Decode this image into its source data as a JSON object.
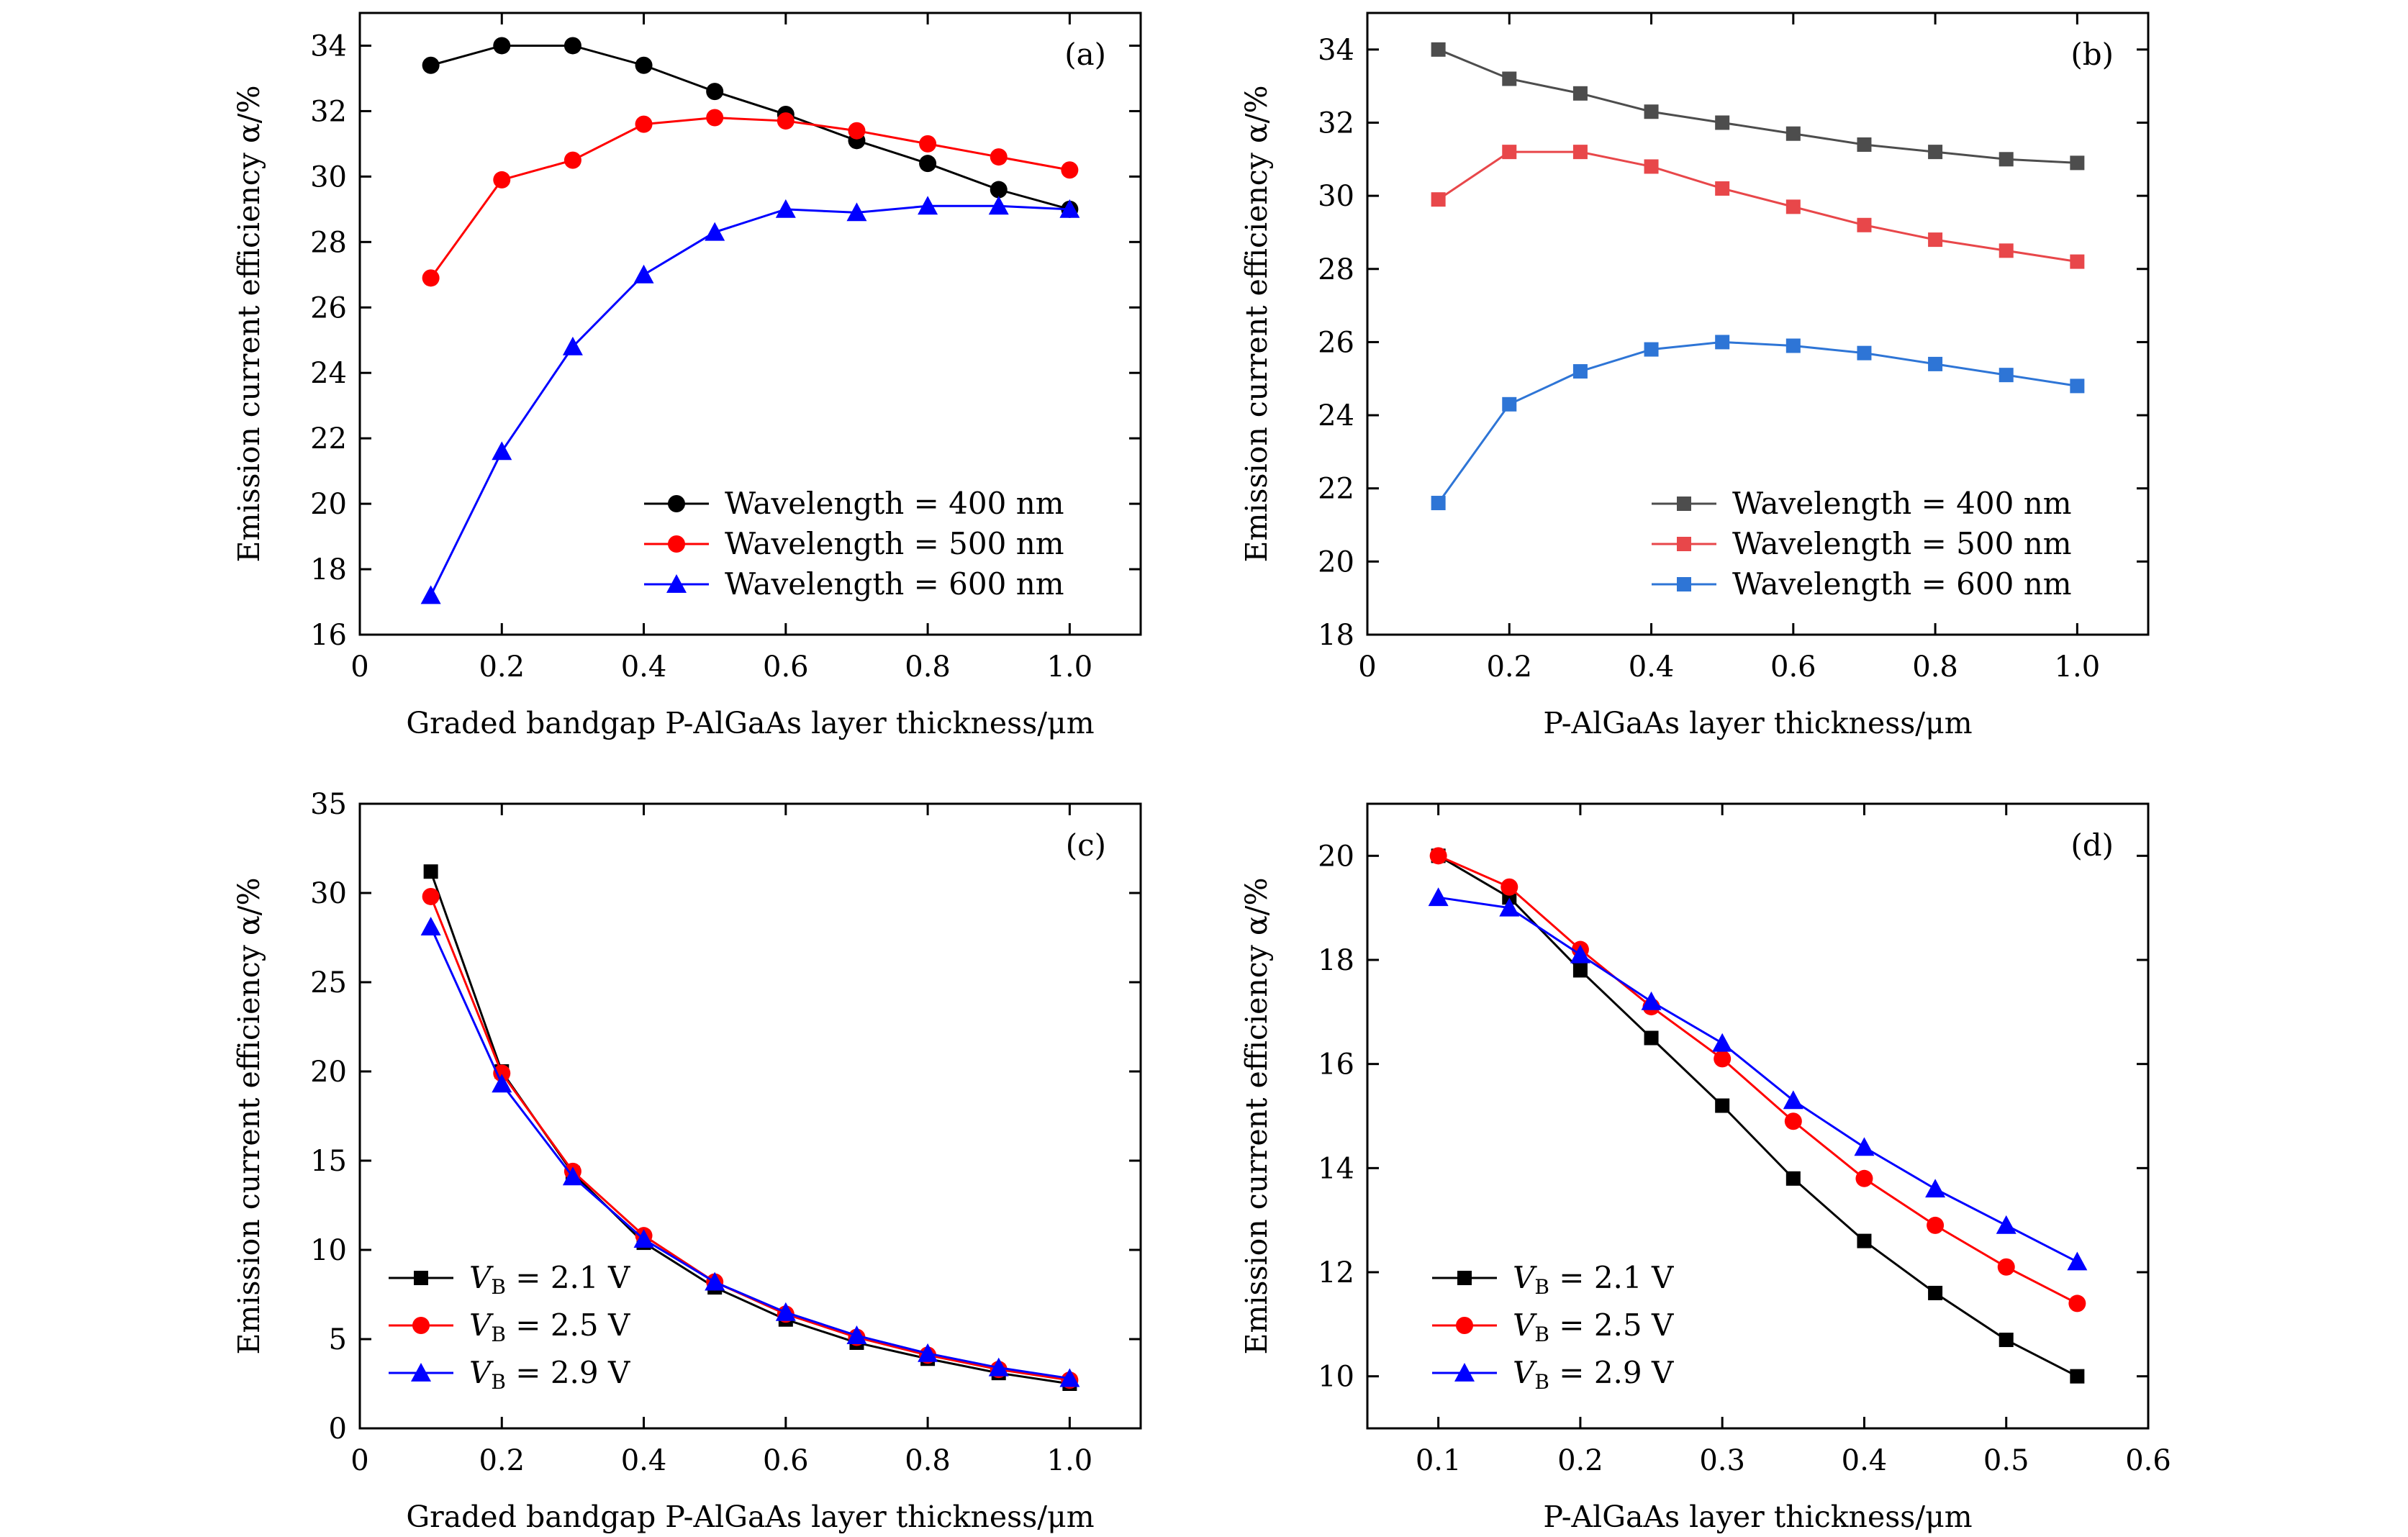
{
  "chart_data": [
    {
      "type": "line",
      "panel_label": "(a)",
      "xlabel": "Graded bandgap P-AlGaAs layer thickness/μm",
      "ylabel": "Emission current efficiency α/%",
      "xlim": [
        0,
        1.1
      ],
      "ylim": [
        16,
        35
      ],
      "xticks": [
        0,
        0.2,
        0.4,
        0.6,
        0.8,
        1.0
      ],
      "xtick_labels": [
        "0",
        "0.2",
        "0.4",
        "0.6",
        "0.8",
        "1.0"
      ],
      "yticks": [
        16,
        18,
        20,
        22,
        24,
        26,
        28,
        30,
        32,
        34
      ],
      "ytick_labels": [
        "16",
        "18",
        "20",
        "22",
        "24",
        "26",
        "28",
        "30",
        "32",
        "34"
      ],
      "legend_position": "bottom-right",
      "x": [
        0.1,
        0.2,
        0.3,
        0.4,
        0.5,
        0.6,
        0.7,
        0.8,
        0.9,
        1.0
      ],
      "series": [
        {
          "name": "Wavelength = 400 nm",
          "color": "#000000",
          "marker": "circle",
          "values": [
            33.4,
            34.0,
            34.0,
            33.4,
            32.6,
            31.9,
            31.1,
            30.4,
            29.6,
            29.0
          ]
        },
        {
          "name": "Wavelength = 500 nm",
          "color": "#ff0000",
          "marker": "circle",
          "values": [
            26.9,
            29.9,
            30.5,
            31.6,
            31.8,
            31.7,
            31.4,
            31.0,
            30.6,
            30.2
          ]
        },
        {
          "name": "Wavelength = 600 nm",
          "color": "#0000ff",
          "marker": "triangle",
          "values": [
            17.2,
            21.6,
            24.8,
            27.0,
            28.3,
            29.0,
            28.9,
            29.1,
            29.1,
            29.0
          ]
        }
      ]
    },
    {
      "type": "line",
      "panel_label": "(b)",
      "xlabel": "P-AlGaAs layer thickness/μm",
      "ylabel": "Emission current efficiency α/%",
      "xlim": [
        0,
        1.1
      ],
      "ylim": [
        18,
        35
      ],
      "xticks": [
        0,
        0.2,
        0.4,
        0.6,
        0.8,
        1.0
      ],
      "xtick_labels": [
        "0",
        "0.2",
        "0.4",
        "0.6",
        "0.8",
        "1.0"
      ],
      "yticks": [
        18,
        20,
        22,
        24,
        26,
        28,
        30,
        32,
        34
      ],
      "ytick_labels": [
        "18",
        "20",
        "22",
        "24",
        "26",
        "28",
        "30",
        "32",
        "34"
      ],
      "legend_position": "bottom-right",
      "x": [
        0.1,
        0.2,
        0.3,
        0.4,
        0.5,
        0.6,
        0.7,
        0.8,
        0.9,
        1.0
      ],
      "series": [
        {
          "name": "Wavelength = 400 nm",
          "color": "#4d4d4d",
          "marker": "square",
          "values": [
            34.0,
            33.2,
            32.8,
            32.3,
            32.0,
            31.7,
            31.4,
            31.2,
            31.0,
            30.9
          ]
        },
        {
          "name": "Wavelength = 500 nm",
          "color": "#e8474a",
          "marker": "square",
          "values": [
            29.9,
            31.2,
            31.2,
            30.8,
            30.2,
            29.7,
            29.2,
            28.8,
            28.5,
            28.2
          ]
        },
        {
          "name": "Wavelength = 600 nm",
          "color": "#2e75d6",
          "marker": "square",
          "values": [
            21.6,
            24.3,
            25.2,
            25.8,
            26.0,
            25.9,
            25.7,
            25.4,
            25.1,
            24.8
          ]
        }
      ]
    },
    {
      "type": "line",
      "panel_label": "(c)",
      "xlabel": "Graded bandgap P-AlGaAs layer thickness/μm",
      "ylabel": "Emission current efficiency α/%",
      "xlim": [
        0,
        1.1
      ],
      "ylim": [
        0,
        35
      ],
      "xticks": [
        0,
        0.2,
        0.4,
        0.6,
        0.8,
        1.0
      ],
      "xtick_labels": [
        "0",
        "0.2",
        "0.4",
        "0.6",
        "0.8",
        "1.0"
      ],
      "yticks": [
        0,
        5,
        10,
        15,
        20,
        25,
        30,
        35
      ],
      "ytick_labels": [
        "0",
        "5",
        "10",
        "15",
        "20",
        "25",
        "30",
        "35"
      ],
      "legend_position": "bottom-left",
      "x": [
        0.1,
        0.2,
        0.3,
        0.4,
        0.5,
        0.6,
        0.7,
        0.8,
        0.9,
        1.0
      ],
      "series": [
        {
          "name": "V_B = 2.1 V",
          "name_parts": {
            "main": "V",
            "sub": "B",
            "rest": " = 2.1 V"
          },
          "color": "#000000",
          "marker": "square",
          "values": [
            31.2,
            20.0,
            14.3,
            10.4,
            7.9,
            6.1,
            4.8,
            3.9,
            3.1,
            2.5
          ]
        },
        {
          "name": "V_B = 2.5 V",
          "name_parts": {
            "main": "V",
            "sub": "B",
            "rest": " = 2.5 V"
          },
          "color": "#ff0000",
          "marker": "circle",
          "values": [
            29.8,
            19.9,
            14.4,
            10.8,
            8.2,
            6.4,
            5.1,
            4.1,
            3.3,
            2.7
          ]
        },
        {
          "name": "V_B = 2.9 V",
          "name_parts": {
            "main": "V",
            "sub": "B",
            "rest": " = 2.9 V"
          },
          "color": "#0000ff",
          "marker": "triangle",
          "values": [
            28.1,
            19.3,
            14.1,
            10.6,
            8.2,
            6.5,
            5.2,
            4.2,
            3.4,
            2.8
          ]
        }
      ]
    },
    {
      "type": "line",
      "panel_label": "(d)",
      "xlabel": "P-AlGaAs layer thickness/μm",
      "ylabel": "Emission current efficiency α/%",
      "xlim": [
        0.05,
        0.6
      ],
      "ylim": [
        9,
        21
      ],
      "xticks": [
        0.1,
        0.2,
        0.3,
        0.4,
        0.5,
        0.6
      ],
      "xtick_labels": [
        "0.1",
        "0.2",
        "0.3",
        "0.4",
        "0.5",
        "0.6"
      ],
      "yticks": [
        10,
        12,
        14,
        16,
        18,
        20
      ],
      "ytick_labels": [
        "10",
        "12",
        "14",
        "16",
        "18",
        "20"
      ],
      "legend_position": "bottom-left",
      "x": [
        0.1,
        0.15,
        0.2,
        0.25,
        0.3,
        0.35,
        0.4,
        0.45,
        0.5,
        0.55
      ],
      "series": [
        {
          "name": "V_B = 2.1 V",
          "name_parts": {
            "main": "V",
            "sub": "B",
            "rest": " = 2.1 V"
          },
          "color": "#000000",
          "marker": "square",
          "values": [
            20.0,
            19.2,
            17.8,
            16.5,
            15.2,
            13.8,
            12.6,
            11.6,
            10.7,
            10.0
          ]
        },
        {
          "name": "V_B = 2.5 V",
          "name_parts": {
            "main": "V",
            "sub": "B",
            "rest": " = 2.5 V"
          },
          "color": "#ff0000",
          "marker": "circle",
          "values": [
            20.0,
            19.4,
            18.2,
            17.1,
            16.1,
            14.9,
            13.8,
            12.9,
            12.1,
            11.4
          ]
        },
        {
          "name": "V_B = 2.9 V",
          "name_parts": {
            "main": "V",
            "sub": "B",
            "rest": " = 2.9 V"
          },
          "color": "#0000ff",
          "marker": "triangle",
          "values": [
            19.2,
            19.0,
            18.1,
            17.2,
            16.4,
            15.3,
            14.4,
            13.6,
            12.9,
            12.2
          ]
        }
      ]
    }
  ]
}
